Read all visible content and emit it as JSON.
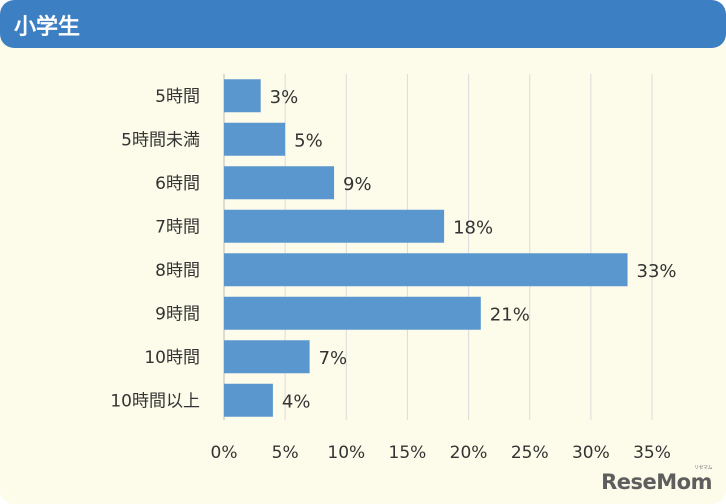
{
  "header": {
    "title": "小学生"
  },
  "colors": {
    "header_bg": "#3d7fc3",
    "bar": "#5b97cf",
    "background": "#fdfbea",
    "grid": "#dcdcdc"
  },
  "chart_data": {
    "type": "bar",
    "orientation": "horizontal",
    "categories": [
      "5時間",
      "5時間未満",
      "6時間",
      "7時間",
      "8時間",
      "9時間",
      "10時間",
      "10時間以上"
    ],
    "values": [
      3,
      5,
      9,
      18,
      33,
      21,
      7,
      4
    ],
    "data_labels": [
      "3%",
      "5%",
      "9%",
      "18%",
      "33%",
      "21%",
      "7%",
      "4%"
    ],
    "x_ticks": [
      "0%",
      "5%",
      "10%",
      "15%",
      "20%",
      "25%",
      "30%",
      "35%"
    ],
    "xlim": [
      0,
      35
    ],
    "grid": true
  },
  "logo": {
    "text": "ReseMom",
    "small": "リセマム"
  }
}
